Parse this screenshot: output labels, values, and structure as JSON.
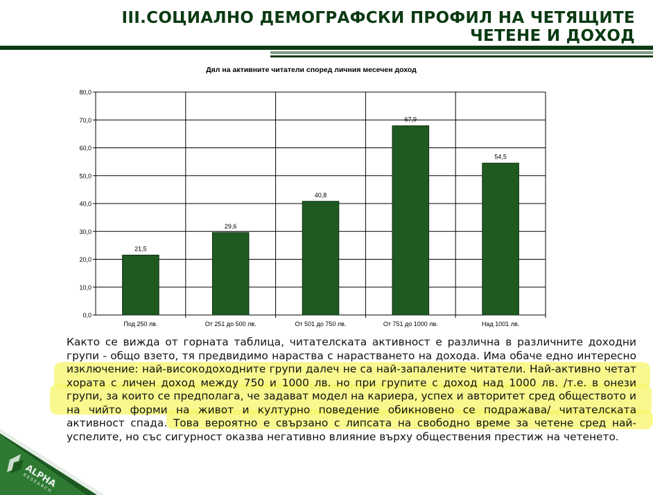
{
  "header": {
    "title_line1": "III.СОЦИАЛНО ДЕМОГРАФСКИ ПРОФИЛ НА ЧЕТЯЩИТЕ",
    "title_line2": "ЧЕТЕНЕ И ДОХОД"
  },
  "chart_data": {
    "type": "bar",
    "title": "Дял на активните читатели според личния месечен доход",
    "categories": [
      "Под 250 лв.",
      "От 251 до 500 лв.",
      "От 501 до 750 лв.",
      "От 751 до 1000 лв.",
      "Над 1001 лв."
    ],
    "values": [
      21.5,
      29.6,
      40.8,
      67.9,
      54.5
    ],
    "value_labels": [
      "21,5",
      "29,6",
      "40,8",
      "67,9",
      "54,5"
    ],
    "ylim": [
      0,
      80
    ],
    "yticks": [
      "0,0",
      "10,0",
      "20,0",
      "30,0",
      "40,0",
      "50,0",
      "60,0",
      "70,0",
      "80,0"
    ],
    "grid": true,
    "bar_color": "#1f5a20"
  },
  "body_text": "Както се вижда от горната таблица, читателската активност е различна в различните доходни групи - общо взето, тя предвидимо нараства с нарастването на дохода. Има обаче едно интересно изключение: най-високодоходните групи далеч не са най-запалените читатели. Най-активно четат хората с личен доход между 750 и 1000 лв. но при групите с доход над 1000 лв. /т.е. в онези групи, за които се предполага, че задават модел на кариера, успех и авторитет сред обществото и на чийто форми на живот и  културно поведение обикновено се подражава/ читателската активност спада. Това вероятно е свързано с липсата на свободно време за четене сред най-успелите, но със сигурност оказва негативно влияние върху обществения престиж на четенето.",
  "logo": {
    "text": "ALPHA",
    "subtext": "RESEARCH"
  },
  "colors": {
    "accent": "#0b3a12",
    "highlight": "#f5f56a"
  }
}
